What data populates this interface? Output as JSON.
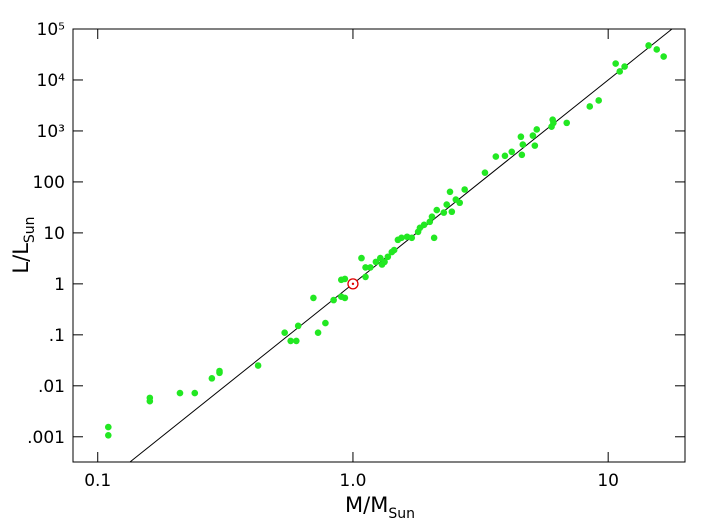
{
  "chart_data": {
    "type": "scatter",
    "x_label": {
      "text": "M/M",
      "sub": "Sun"
    },
    "y_label": {
      "text": "L/L",
      "sub": "Sun"
    },
    "x_log": true,
    "y_log": true,
    "xlim": [
      0.08,
      20
    ],
    "ylim": [
      0.00032,
      100000
    ],
    "xticks": [
      0.1,
      {
        "value": 1,
        "label": "1.0"
      },
      10
    ],
    "yticks": [
      {
        "value": 100000,
        "label": "10⁵"
      },
      {
        "value": 10000,
        "label": "10⁴"
      },
      {
        "value": 1000,
        "label": "10³"
      },
      100,
      10,
      1,
      {
        "value": 0.1,
        "label": ".1"
      },
      {
        "value": 0.01,
        "label": ".01"
      },
      {
        "value": 0.001,
        "label": ".001"
      }
    ],
    "model_exponent": 4,
    "model_color": "#000000",
    "sun": {
      "x": 1,
      "y": 1,
      "color": "#e00000"
    },
    "series": [
      {
        "color": "#22e822",
        "x": [
          0.11,
          0.11,
          0.16,
          0.16,
          0.21,
          0.24,
          0.28,
          0.3,
          0.3,
          0.425,
          0.54,
          0.57,
          0.6,
          0.61,
          0.7,
          0.73,
          0.78,
          0.84,
          0.9,
          0.93,
          0.9,
          0.93,
          1.08,
          1.12,
          1.12,
          1.17,
          1.23,
          1.28,
          1.3,
          1.33,
          1.37,
          1.42,
          1.45,
          1.5,
          1.55,
          1.63,
          1.7,
          1.8,
          1.83,
          1.9,
          2.0,
          2.04,
          2.08,
          2.13,
          2.27,
          2.33,
          2.4,
          2.44,
          2.53,
          2.62,
          2.74,
          3.29,
          3.63,
          3.94,
          4.19,
          4.55,
          4.59,
          4.63,
          5.07,
          5.16,
          5.25,
          6.0,
          6.06,
          6.1,
          6.88,
          8.47,
          9.18,
          10.7,
          11.1,
          11.6,
          14.4,
          15.5,
          16.5
        ],
        "values": [
          0.00155,
          0.00107,
          0.0058,
          0.005,
          0.0072,
          0.0072,
          0.014,
          0.018,
          0.0195,
          0.025,
          0.11,
          0.076,
          0.076,
          0.15,
          0.53,
          0.11,
          0.17,
          0.48,
          0.56,
          0.53,
          1.2,
          1.25,
          3.2,
          1.37,
          2.1,
          2.1,
          2.7,
          3.2,
          2.4,
          2.7,
          3.4,
          4.2,
          4.6,
          7.3,
          8.0,
          8.4,
          8.0,
          10.5,
          12.6,
          14.4,
          16.5,
          20.8,
          8.0,
          28,
          25,
          36,
          64,
          26,
          45,
          39,
          71,
          152,
          314,
          325,
          390,
          770,
          340,
          540,
          810,
          515,
          1070,
          1210,
          1660,
          1440,
          1440,
          3020,
          3960,
          21000,
          14700,
          18300,
          47500,
          39700,
          28800
        ]
      }
    ]
  }
}
